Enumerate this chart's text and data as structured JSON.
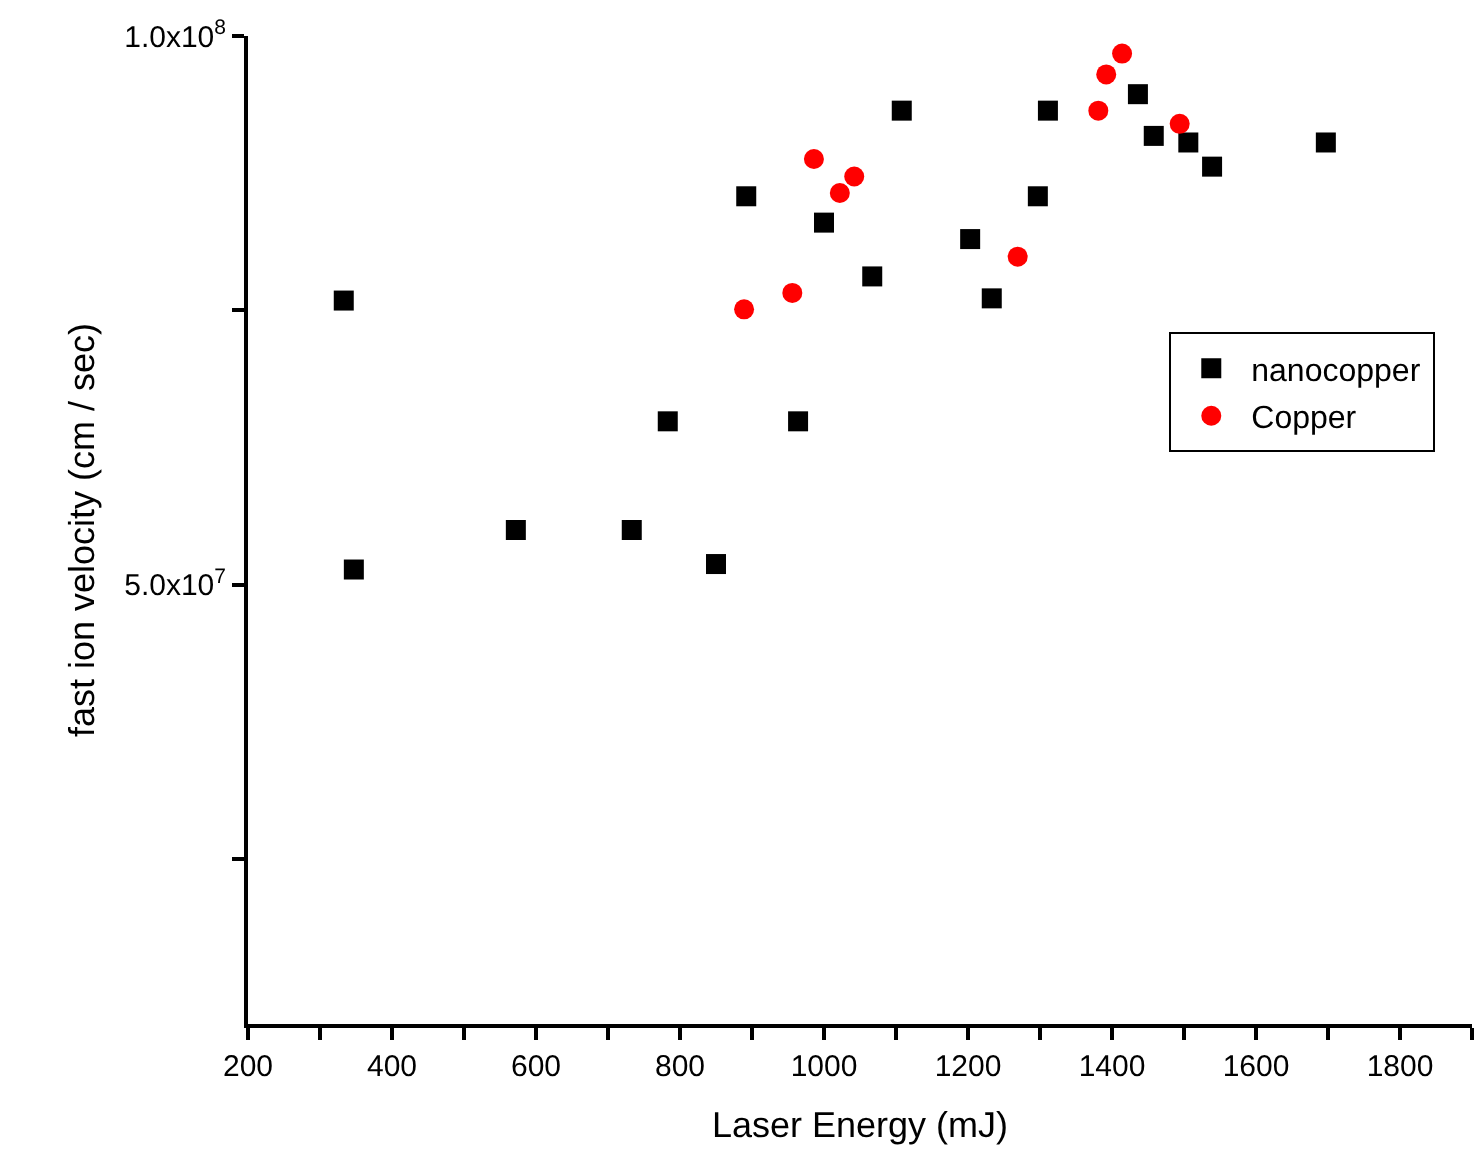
{
  "chart_data": {
    "type": "scatter",
    "xlabel": "Laser Energy (mJ)",
    "ylabel": "fast ion velocity (cm / sec)",
    "xlim": [
      200,
      1900
    ],
    "ylim": [
      10000000,
      100000000
    ],
    "xticks": [
      200,
      {
        "value": 300,
        "label": null
      },
      400,
      {
        "value": 500,
        "label": null
      },
      600,
      {
        "value": 700,
        "label": null
      },
      800,
      {
        "value": 900,
        "label": null
      },
      1000,
      {
        "value": 1100,
        "label": null
      },
      1200,
      {
        "value": 1300,
        "label": null
      },
      1400,
      {
        "value": 1500,
        "label": null
      },
      1600,
      {
        "value": 1700,
        "label": null
      },
      1800,
      {
        "value": 1900,
        "label": null
      }
    ],
    "yticks": [
      {
        "value": 25000000,
        "label": null
      },
      {
        "value": 50000000,
        "label": "5.0x10$^{7}$"
      },
      {
        "value": 75000000,
        "label": null
      },
      {
        "value": 100000000,
        "label": "1.0x10$^{8}$"
      }
    ],
    "legend": "right",
    "series": [
      {
        "name": "nanocopper",
        "color": "#000000",
        "marker": "square",
        "x": [
          333,
          347,
          572,
          733,
          783,
          850,
          892,
          1000,
          1108,
          1067,
          964,
          1203,
          1233,
          1297,
          1311,
          1436,
          1458,
          1506,
          1539,
          1697
        ],
        "values": [
          75900000,
          51400000,
          55000000,
          55000000,
          64900000,
          51900000,
          85400000,
          83000000,
          93200000,
          78100000,
          64900000,
          81500000,
          76100000,
          85400000,
          93200000,
          94700000,
          90900000,
          90300000,
          88100000,
          90300000
        ]
      },
      {
        "name": "Copper",
        "color": "#ff0000",
        "marker": "circle",
        "x": [
          889,
          956,
          986,
          1022,
          1042,
          1269,
          1381,
          1392,
          1414,
          1494
        ],
        "values": [
          75100000,
          76600000,
          88800000,
          85700000,
          87200000,
          79900000,
          93200000,
          96500000,
          98400000,
          92000000
        ]
      }
    ]
  }
}
